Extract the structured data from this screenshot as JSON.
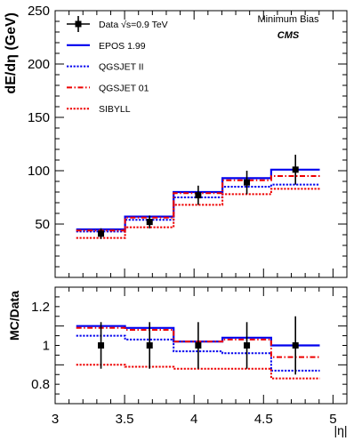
{
  "chart_data": [
    {
      "type": "line",
      "panel": "top",
      "ylabel": "dE/dη (GeV)",
      "xlim": [
        3.0,
        5.1
      ],
      "ylim": [
        0,
        250
      ],
      "yticks": [
        "50",
        "100",
        "150",
        "200",
        "250"
      ],
      "annotations": [
        "Minimum Bias",
        "CMS"
      ],
      "legend": [
        {
          "label": "Data √s=0.9 TeV",
          "style": "data"
        },
        {
          "label": "EPOS 1.99",
          "style": "solid-blue"
        },
        {
          "label": "QGSJET II",
          "style": "dotted-blue"
        },
        {
          "label": "QGSJET 01",
          "style": "dashdot-red"
        },
        {
          "label": "SIBYLL",
          "style": "dotted-red"
        }
      ],
      "bin_edges": [
        3.152,
        3.503,
        3.853,
        4.204,
        4.555,
        4.905
      ],
      "data": {
        "name": "Data √s=0.9 TeV",
        "x": [
          3.33,
          3.68,
          4.03,
          4.38,
          4.73
        ],
        "y": [
          41,
          52,
          77,
          89,
          101
        ],
        "err": [
          5,
          6,
          9,
          11,
          14
        ]
      },
      "series": [
        {
          "name": "EPOS 1.99",
          "color": "#0000ee",
          "values": [
            45,
            57,
            80,
            93,
            101
          ]
        },
        {
          "name": "QGSJET II",
          "color": "#0000ee",
          "values": [
            43,
            54,
            75,
            85,
            87
          ]
        },
        {
          "name": "QGSJET 01",
          "color": "#ee0000",
          "values": [
            44,
            56,
            79,
            91,
            95
          ]
        },
        {
          "name": "SIBYLL",
          "color": "#ee0000",
          "values": [
            37,
            47,
            68,
            78,
            83
          ]
        }
      ]
    },
    {
      "type": "line",
      "panel": "bottom",
      "ylabel": "MC/Data",
      "xlabel": "|η|",
      "xlim": [
        3.0,
        5.1
      ],
      "ylim": [
        0.7,
        1.3
      ],
      "xticks": [
        "3",
        "3.5",
        "4",
        "4.5",
        "5"
      ],
      "yticks": [
        "0.8",
        "1",
        "1.2"
      ],
      "bin_edges": [
        3.152,
        3.503,
        3.853,
        4.204,
        4.555,
        4.905
      ],
      "data": {
        "x": [
          3.33,
          3.68,
          4.03,
          4.38,
          4.73
        ],
        "y": [
          1,
          1,
          1,
          1,
          1
        ],
        "err": [
          0.12,
          0.12,
          0.12,
          0.12,
          0.15
        ]
      },
      "series": [
        {
          "name": "EPOS 1.99",
          "color": "#0000ee",
          "values": [
            1.1,
            1.09,
            1.02,
            1.04,
            1.0
          ]
        },
        {
          "name": "QGSJET II",
          "color": "#0000ee",
          "values": [
            1.05,
            1.03,
            0.97,
            0.96,
            0.87
          ]
        },
        {
          "name": "QGSJET 01",
          "color": "#ee0000",
          "values": [
            1.09,
            1.08,
            1.02,
            1.03,
            0.94
          ]
        },
        {
          "name": "SIBYLL",
          "color": "#ee0000",
          "values": [
            0.9,
            0.89,
            0.88,
            0.88,
            0.83
          ]
        }
      ]
    }
  ]
}
